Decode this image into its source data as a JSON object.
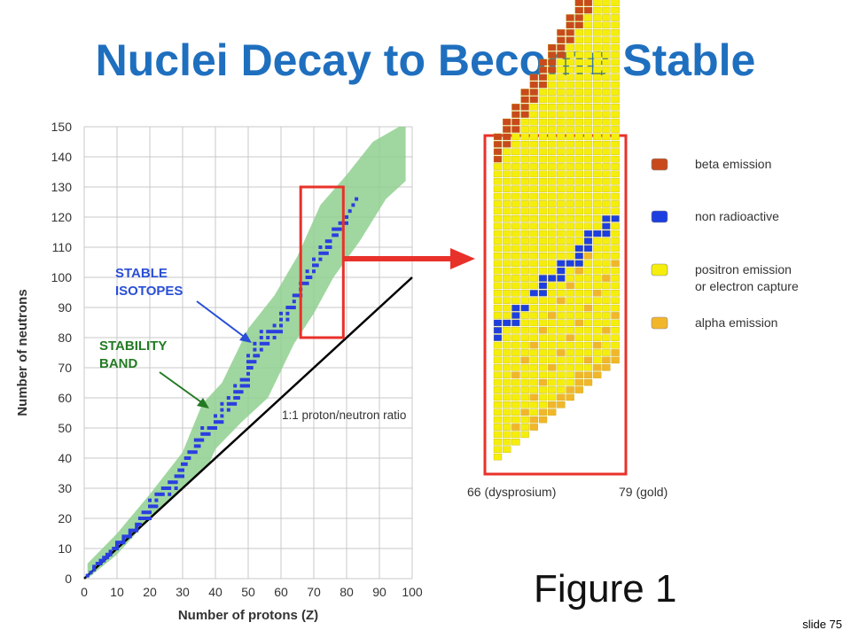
{
  "slide": {
    "title": "Nuclei Decay to Become Stable",
    "slide_number": "slide 75",
    "figure_label": "Figure 1"
  },
  "chart_data": [
    {
      "type": "scatter",
      "xlabel": "Number of protons (Z)",
      "ylabel": "Number of neutrons",
      "xlim": [
        0,
        100
      ],
      "ylim": [
        0,
        150
      ],
      "x_ticks": [
        0,
        10,
        20,
        30,
        40,
        50,
        60,
        70,
        80,
        90,
        100
      ],
      "y_ticks": [
        0,
        10,
        20,
        30,
        40,
        50,
        60,
        70,
        80,
        90,
        100,
        110,
        120,
        130,
        140,
        150
      ],
      "grid": true,
      "colors": {
        "band": "#8fd08f",
        "stable_points": "#2a3fe0",
        "reference_line": "#000000",
        "highlight_box": "#e8312a",
        "label_blue": "#2a4fd6",
        "label_green": "#237a23"
      },
      "annotations": {
        "stable_isotopes": [
          "STABLE",
          "ISOTOPES"
        ],
        "stability_band": [
          "STABILITY",
          "BAND"
        ],
        "reference_line": "1:1 proton/neutron ratio"
      },
      "stability_band": {
        "upper": [
          [
            1,
            5
          ],
          [
            10,
            15
          ],
          [
            20,
            28
          ],
          [
            30,
            42
          ],
          [
            36,
            58
          ],
          [
            42,
            65
          ],
          [
            50,
            83
          ],
          [
            58,
            94
          ],
          [
            65,
            107
          ],
          [
            72,
            124
          ],
          [
            80,
            134
          ],
          [
            88,
            145
          ],
          [
            96,
            150
          ],
          [
            98,
            150
          ]
        ],
        "lower": [
          [
            1,
            0
          ],
          [
            10,
            8
          ],
          [
            20,
            20
          ],
          [
            30,
            30
          ],
          [
            38,
            38
          ],
          [
            40,
            43
          ],
          [
            48,
            52
          ],
          [
            56,
            60
          ],
          [
            64,
            78
          ],
          [
            70,
            88
          ],
          [
            76,
            100
          ],
          [
            84,
            112
          ],
          [
            92,
            126
          ],
          [
            98,
            132
          ]
        ]
      },
      "reference_line_points": [
        [
          0,
          0
        ],
        [
          100,
          100
        ]
      ],
      "highlight_box": {
        "x": [
          66,
          79
        ],
        "y": [
          80,
          130
        ]
      },
      "stable_isotopes": [
        [
          1,
          1
        ],
        [
          2,
          2
        ],
        [
          3,
          3
        ],
        [
          3,
          4
        ],
        [
          4,
          5
        ],
        [
          5,
          5
        ],
        [
          5,
          6
        ],
        [
          6,
          6
        ],
        [
          6,
          7
        ],
        [
          7,
          7
        ],
        [
          7,
          8
        ],
        [
          8,
          8
        ],
        [
          8,
          9
        ],
        [
          9,
          10
        ],
        [
          10,
          10
        ],
        [
          10,
          11
        ],
        [
          10,
          12
        ],
        [
          11,
          12
        ],
        [
          12,
          12
        ],
        [
          12,
          13
        ],
        [
          12,
          14
        ],
        [
          13,
          14
        ],
        [
          14,
          14
        ],
        [
          14,
          15
        ],
        [
          14,
          16
        ],
        [
          15,
          16
        ],
        [
          16,
          16
        ],
        [
          16,
          17
        ],
        [
          16,
          18
        ],
        [
          17,
          18
        ],
        [
          17,
          20
        ],
        [
          18,
          20
        ],
        [
          18,
          22
        ],
        [
          19,
          20
        ],
        [
          19,
          22
        ],
        [
          20,
          20
        ],
        [
          20,
          22
        ],
        [
          20,
          24
        ],
        [
          20,
          26
        ],
        [
          21,
          24
        ],
        [
          22,
          24
        ],
        [
          22,
          26
        ],
        [
          22,
          28
        ],
        [
          23,
          28
        ],
        [
          24,
          28
        ],
        [
          24,
          30
        ],
        [
          25,
          30
        ],
        [
          26,
          28
        ],
        [
          26,
          30
        ],
        [
          26,
          32
        ],
        [
          27,
          32
        ],
        [
          28,
          30
        ],
        [
          28,
          32
        ],
        [
          28,
          34
        ],
        [
          29,
          34
        ],
        [
          29,
          36
        ],
        [
          30,
          34
        ],
        [
          30,
          36
        ],
        [
          30,
          38
        ],
        [
          31,
          38
        ],
        [
          31,
          40
        ],
        [
          32,
          40
        ],
        [
          32,
          42
        ],
        [
          33,
          42
        ],
        [
          34,
          42
        ],
        [
          34,
          44
        ],
        [
          34,
          46
        ],
        [
          35,
          44
        ],
        [
          35,
          46
        ],
        [
          36,
          46
        ],
        [
          36,
          48
        ],
        [
          36,
          50
        ],
        [
          37,
          48
        ],
        [
          38,
          48
        ],
        [
          38,
          50
        ],
        [
          39,
          50
        ],
        [
          40,
          50
        ],
        [
          40,
          52
        ],
        [
          40,
          54
        ],
        [
          41,
          52
        ],
        [
          42,
          52
        ],
        [
          42,
          54
        ],
        [
          42,
          56
        ],
        [
          42,
          58
        ],
        [
          44,
          56
        ],
        [
          44,
          58
        ],
        [
          44,
          60
        ],
        [
          45,
          58
        ],
        [
          46,
          58
        ],
        [
          46,
          60
        ],
        [
          46,
          62
        ],
        [
          46,
          64
        ],
        [
          47,
          60
        ],
        [
          47,
          62
        ],
        [
          48,
          62
        ],
        [
          48,
          64
        ],
        [
          48,
          66
        ],
        [
          49,
          64
        ],
        [
          49,
          66
        ],
        [
          50,
          64
        ],
        [
          50,
          66
        ],
        [
          50,
          68
        ],
        [
          50,
          70
        ],
        [
          50,
          72
        ],
        [
          50,
          74
        ],
        [
          51,
          70
        ],
        [
          51,
          72
        ],
        [
          52,
          72
        ],
        [
          52,
          74
        ],
        [
          52,
          76
        ],
        [
          52,
          78
        ],
        [
          53,
          74
        ],
        [
          54,
          76
        ],
        [
          54,
          78
        ],
        [
          54,
          80
        ],
        [
          54,
          82
        ],
        [
          55,
          78
        ],
        [
          56,
          78
        ],
        [
          56,
          80
        ],
        [
          56,
          82
        ],
        [
          57,
          82
        ],
        [
          58,
          80
        ],
        [
          58,
          82
        ],
        [
          58,
          84
        ],
        [
          59,
          82
        ],
        [
          60,
          82
        ],
        [
          60,
          84
        ],
        [
          60,
          86
        ],
        [
          60,
          88
        ],
        [
          62,
          86
        ],
        [
          62,
          88
        ],
        [
          62,
          90
        ],
        [
          63,
          90
        ],
        [
          64,
          90
        ],
        [
          64,
          92
        ],
        [
          64,
          94
        ],
        [
          65,
          94
        ],
        [
          66,
          94
        ],
        [
          66,
          96
        ],
        [
          66,
          98
        ],
        [
          67,
          98
        ],
        [
          68,
          98
        ],
        [
          68,
          100
        ],
        [
          68,
          102
        ],
        [
          69,
          100
        ],
        [
          70,
          102
        ],
        [
          70,
          104
        ],
        [
          70,
          106
        ],
        [
          71,
          104
        ],
        [
          72,
          106
        ],
        [
          72,
          108
        ],
        [
          72,
          110
        ],
        [
          73,
          108
        ],
        [
          74,
          108
        ],
        [
          74,
          110
        ],
        [
          74,
          112
        ],
        [
          75,
          110
        ],
        [
          75,
          112
        ],
        [
          76,
          114
        ],
        [
          76,
          116
        ],
        [
          77,
          114
        ],
        [
          77,
          116
        ],
        [
          78,
          116
        ],
        [
          78,
          118
        ],
        [
          79,
          118
        ],
        [
          80,
          118
        ],
        [
          80,
          120
        ],
        [
          81,
          122
        ],
        [
          82,
          124
        ],
        [
          83,
          126
        ]
      ]
    },
    {
      "type": "heatmap",
      "xlabel": "",
      "ylabel": "",
      "x_labels": [
        "66 (dysprosium)",
        "79 (gold)"
      ],
      "x_range": [
        66,
        79
      ],
      "legend": [
        {
          "name": "beta emission",
          "color": "#c84a1c"
        },
        {
          "name": "non radioactive",
          "color": "#1e3fe0"
        },
        {
          "name": "positron emission or electron capture",
          "color": "#f5ee0c"
        },
        {
          "name": "alpha emission",
          "color": "#f2b62a"
        }
      ],
      "frame_color": "#e8312a"
    }
  ]
}
